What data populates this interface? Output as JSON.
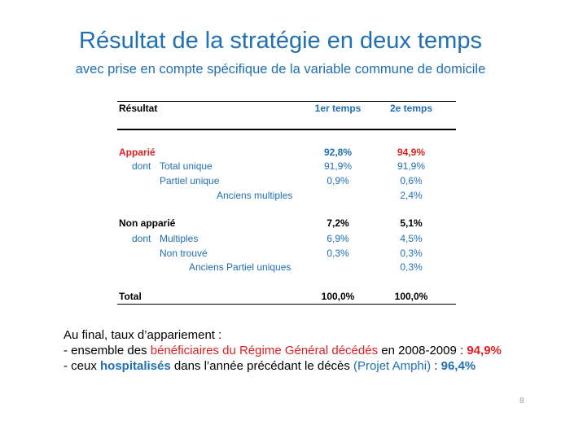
{
  "slide": {
    "title": "Résultat de la stratégie en deux temps",
    "subtitle": "avec prise en compte spécifique de la variable commune de domicile",
    "page_number": "8"
  },
  "table": {
    "headers": {
      "label": "Résultat",
      "col1": "1er temps",
      "col2": "2e temps"
    },
    "rows": [
      {
        "label": "Apparié",
        "v1": "92,8%",
        "v2": "94,9%"
      },
      {
        "prefix": "dont",
        "label": "Total unique",
        "v1": "91,9%",
        "v2": "91,9%"
      },
      {
        "label": "Partiel unique",
        "v1": "0,9%",
        "v2": "0,6%"
      },
      {
        "label": "Anciens multiples",
        "v1": "",
        "v2": "2,4%"
      },
      {
        "label": "Non apparié",
        "v1": "7,2%",
        "v2": "5,1%"
      },
      {
        "prefix": "dont",
        "label": "Multiples",
        "v1": "6,9%",
        "v2": "4,5%"
      },
      {
        "label": "Non trouvé",
        "v1": "0,3%",
        "v2": "0,3%"
      },
      {
        "label": "Anciens Partiel uniques",
        "v1": "",
        "v2": "0,3%"
      },
      {
        "label": "Total",
        "v1": "100,0%",
        "v2": "100,0%"
      }
    ]
  },
  "summary": {
    "intro": "Au final, taux d’appariement :",
    "line1": {
      "prefix": "- ensemble des ",
      "highlight": "bénéficiaires du Régime Général décédés",
      "middle": " en 2008-2009 : ",
      "value": "94,9%"
    },
    "line2": {
      "prefix": "- ceux ",
      "highlight": "hospitalisés",
      "middle": " dans l’année précédant le décès ",
      "project": "(Projet Amphi)",
      "sep": " : ",
      "value": "96,4%"
    }
  },
  "colors": {
    "blue": "#1f6fb5",
    "red": "#e02020",
    "text": "#000000"
  }
}
